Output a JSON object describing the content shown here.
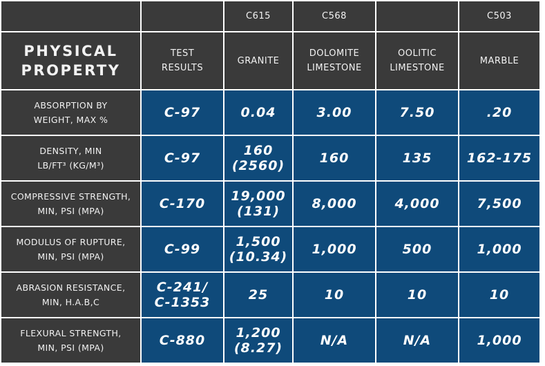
{
  "codes": [
    "",
    "",
    "C615",
    "C568",
    "",
    "C503"
  ],
  "headers": [
    "PHYSICAL\nPROPERTY",
    "TEST\nRESULTS",
    "GRANITE",
    "DOLOMITE\nLIMESTONE",
    "OOLITIC\nLIMESTONE",
    "MARBLE"
  ],
  "rows": [
    {
      "property": "ABSORPTION BY\nWEIGHT, MAX %",
      "test": "C-97",
      "values": [
        "0.04",
        "3.00",
        "7.50",
        ".20"
      ]
    },
    {
      "property": "DENSITY, MIN\nLB/FT³ (KG/M³)",
      "test": "C-97",
      "values": [
        "160\n(2560)",
        "160",
        "135",
        "162-175"
      ]
    },
    {
      "property": "COMPRESSIVE STRENGTH,\nMIN, PSI (MPA)",
      "test": "C-170",
      "values": [
        "19,000\n(131)",
        "8,000",
        "4,000",
        "7,500"
      ]
    },
    {
      "property": "MODULUS OF RUPTURE,\nMIN, PSI (MPA)",
      "test": "C-99",
      "values": [
        "1,500\n(10.34)",
        "1,000",
        "500",
        "1,000"
      ]
    },
    {
      "property": "ABRASION RESISTANCE,\nMIN, H.A.B,C",
      "test": "C-241/\nC-1353",
      "values": [
        "25",
        "10",
        "10",
        "10"
      ]
    },
    {
      "property": "FLEXURAL STRENGTH,\nMIN, PSI (MPA)",
      "test": "C-880",
      "values": [
        "1,200\n(8.27)",
        "N/A",
        "N/A",
        "1,000"
      ]
    }
  ]
}
